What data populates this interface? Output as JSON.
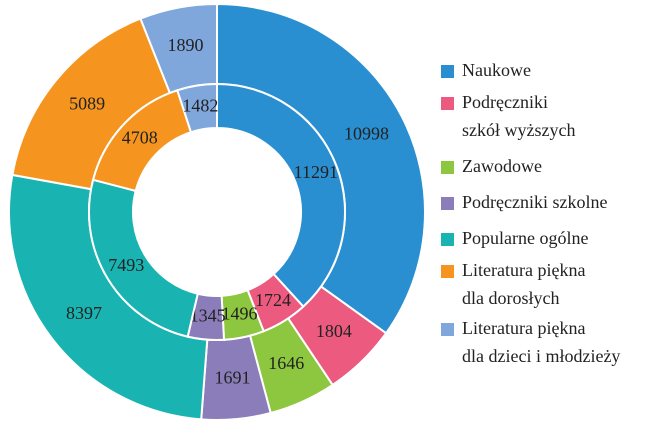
{
  "chart_data": {
    "type": "nested-donut",
    "categories": [
      [
        "Naukowe"
      ],
      [
        "Podręczniki",
        "szkół wyższych"
      ],
      [
        "Zawodowe"
      ],
      [
        "Podręczniki szkolne"
      ],
      [
        "Popularne ogólne"
      ],
      [
        "Literatura piękna",
        "dla dorosłych"
      ],
      [
        "Literatura piękna",
        "dla dzieci i młodzieży"
      ]
    ],
    "colors": [
      "#2a8fd1",
      "#ec5b7f",
      "#8dc63f",
      "#8b7db9",
      "#19b4b1",
      "#f5951f",
      "#7fa7dc"
    ],
    "series": [
      {
        "values": [
          10998,
          1804,
          1646,
          1691,
          8397,
          5089,
          1890
        ]
      },
      {
        "values": [
          11291,
          1724,
          1496,
          1345,
          7493,
          4708,
          1482
        ]
      }
    ]
  }
}
